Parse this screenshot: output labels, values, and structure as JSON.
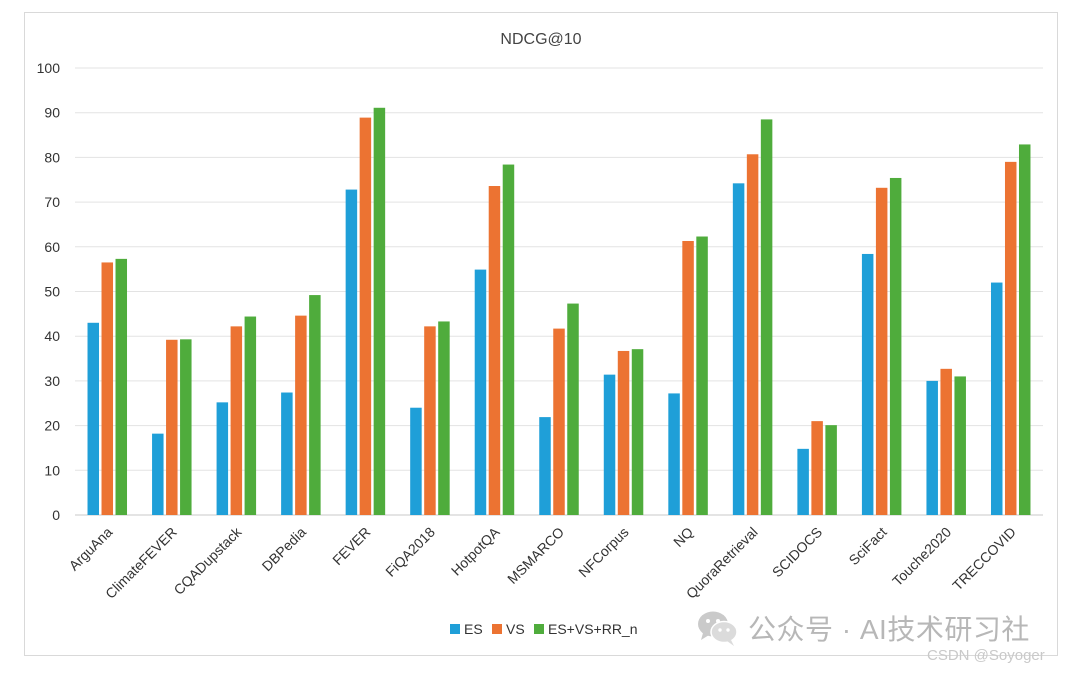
{
  "chart_data": {
    "type": "bar",
    "title": "NDCG@10",
    "xlabel": "",
    "ylabel": "",
    "ylim": [
      0,
      100
    ],
    "yticks": [
      "0",
      "10",
      "20",
      "30",
      "40",
      "50",
      "60",
      "70",
      "80",
      "90",
      "100"
    ],
    "grid": true,
    "legend_position": "bottom",
    "categories": [
      "ArguAna",
      "ClimateFEVER",
      "CQADupstack",
      "DBPedia",
      "FEVER",
      "FiQA2018",
      "HotpotQA",
      "MSMARCO",
      "NFCorpus",
      "NQ",
      "QuoraRetrieval",
      "SCIDOCS",
      "SciFact",
      "Touche2020",
      "TRECCOVID"
    ],
    "series": [
      {
        "name": "ES",
        "color": "#1f9fd8",
        "values": [
          43.0,
          18.2,
          25.2,
          27.4,
          72.8,
          24.0,
          54.9,
          21.9,
          31.4,
          27.2,
          74.2,
          14.8,
          58.4,
          30.0,
          52.0
        ]
      },
      {
        "name": "VS",
        "color": "#ec7332",
        "values": [
          56.5,
          39.2,
          42.2,
          44.6,
          88.9,
          42.2,
          73.6,
          41.7,
          36.7,
          61.3,
          80.7,
          21.0,
          73.2,
          32.7,
          79.0
        ]
      },
      {
        "name": "ES+VS+RR_n",
        "color": "#4fac3c",
        "values": [
          57.3,
          39.3,
          44.4,
          49.2,
          91.1,
          43.3,
          78.4,
          47.3,
          37.1,
          62.3,
          88.5,
          20.1,
          75.4,
          31.0,
          82.9
        ]
      }
    ]
  },
  "watermark": {
    "icon": "wechat-icon",
    "main_text": "公众号 · AI技术研习社",
    "sub_text": "CSDN @Soyoger"
  }
}
